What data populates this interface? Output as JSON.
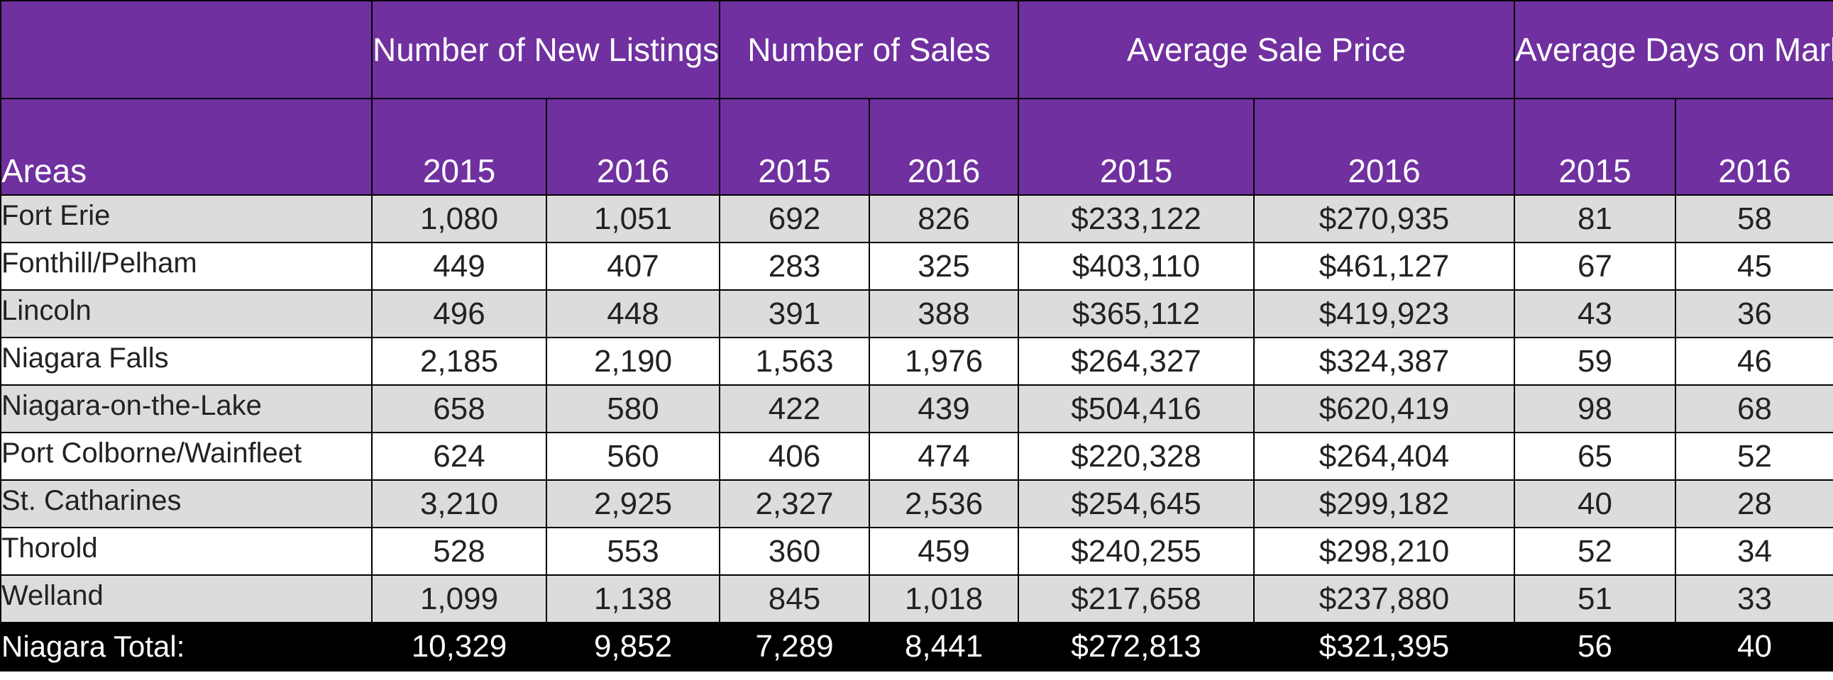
{
  "chart_data": {
    "type": "table",
    "column_groups": [
      {
        "label": "Number of New Listings",
        "years": [
          "2015",
          "2016"
        ]
      },
      {
        "label": "Number of Sales",
        "years": [
          "2015",
          "2016"
        ]
      },
      {
        "label": "Average Sale Price",
        "years": [
          "2015",
          "2016"
        ]
      },
      {
        "label": "Average Days on Market",
        "years": [
          "2015",
          "2016"
        ]
      }
    ],
    "areas_label": "Areas",
    "rows": [
      {
        "area": "Fort Erie",
        "values": [
          "1,080",
          "1,051",
          "692",
          "826",
          "$233,122",
          "$270,935",
          "81",
          "58"
        ]
      },
      {
        "area": "Fonthill/Pelham",
        "values": [
          "449",
          "407",
          "283",
          "325",
          "$403,110",
          "$461,127",
          "67",
          "45"
        ]
      },
      {
        "area": "Lincoln",
        "values": [
          "496",
          "448",
          "391",
          "388",
          "$365,112",
          "$419,923",
          "43",
          "36"
        ]
      },
      {
        "area": "Niagara Falls",
        "values": [
          "2,185",
          "2,190",
          "1,563",
          "1,976",
          "$264,327",
          "$324,387",
          "59",
          "46"
        ]
      },
      {
        "area": "Niagara-on-the-Lake",
        "values": [
          "658",
          "580",
          "422",
          "439",
          "$504,416",
          "$620,419",
          "98",
          "68"
        ]
      },
      {
        "area": "Port Colborne/Wainfleet",
        "values": [
          "624",
          "560",
          "406",
          "474",
          "$220,328",
          "$264,404",
          "65",
          "52"
        ]
      },
      {
        "area": "St. Catharines",
        "values": [
          "3,210",
          "2,925",
          "2,327",
          "2,536",
          "$254,645",
          "$299,182",
          "40",
          "28"
        ]
      },
      {
        "area": "Thorold",
        "values": [
          "528",
          "553",
          "360",
          "459",
          "$240,255",
          "$298,210",
          "52",
          "34"
        ]
      },
      {
        "area": "Welland",
        "values": [
          "1,099",
          "1,138",
          "845",
          "1,018",
          "$217,658",
          "$237,880",
          "51",
          "33"
        ]
      }
    ],
    "total": {
      "area": "Niagara Total:",
      "values": [
        "10,329",
        "9,852",
        "7,289",
        "8,441",
        "$272,813",
        "$321,395",
        "56",
        "40"
      ]
    }
  },
  "colors": {
    "header_bg": "#7030a0",
    "row_alt_bg": "#dcdcdc",
    "total_bg": "#000000"
  }
}
